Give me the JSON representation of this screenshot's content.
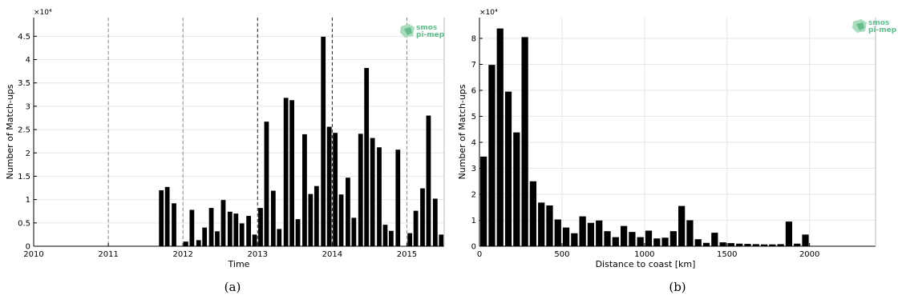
{
  "colors": {
    "bar": "#000000",
    "grid": "#e6e6e6",
    "axis": "#000000",
    "logo_text": "#5fbf8c",
    "logo_shape_light": "#a8dcbc",
    "logo_shape_dark": "#4caf7a"
  },
  "logo": {
    "line1": "smos",
    "line2": "pi-mep"
  },
  "chart_data": [
    {
      "type": "bar",
      "caption": "(a)",
      "xlabel": "Time",
      "ylabel": "Number of Match-ups",
      "y_exponent_label": "×10⁴",
      "xlim": [
        2010.0,
        2015.5
      ],
      "ylim": [
        0,
        4.9
      ],
      "x_ticks": [
        2010,
        2011,
        2012,
        2013,
        2014,
        2015
      ],
      "y_ticks": [
        0,
        0.5,
        1,
        1.5,
        2,
        2.5,
        3,
        3.5,
        4,
        4.5
      ],
      "y_tick_labels": [
        "0",
        "0.5",
        "1",
        "1.5",
        "2",
        "2.5",
        "3",
        "3.5",
        "4",
        "4.5"
      ],
      "grid": true,
      "dashed_year_lines": [
        2011,
        2012,
        2013,
        2014,
        2015
      ],
      "bar_width": 0.062,
      "x": [
        2011.71,
        2011.79,
        2011.88,
        2012.04,
        2012.12,
        2012.21,
        2012.29,
        2012.38,
        2012.46,
        2012.54,
        2012.63,
        2012.71,
        2012.79,
        2012.88,
        2012.96,
        2013.04,
        2013.12,
        2013.21,
        2013.29,
        2013.38,
        2013.46,
        2013.54,
        2013.63,
        2013.71,
        2013.79,
        2013.88,
        2013.96,
        2014.04,
        2014.12,
        2014.21,
        2014.29,
        2014.38,
        2014.46,
        2014.54,
        2014.63,
        2014.71,
        2014.79,
        2014.88,
        2015.04,
        2015.12,
        2015.21,
        2015.29,
        2015.38,
        2015.46
      ],
      "values": [
        1.2,
        1.27,
        0.92,
        0.1,
        0.78,
        0.13,
        0.4,
        0.82,
        0.32,
        0.99,
        0.74,
        0.7,
        0.49,
        0.65,
        0.25,
        0.82,
        2.67,
        1.19,
        0.37,
        3.18,
        3.13,
        0.58,
        2.4,
        1.12,
        1.29,
        4.49,
        2.56,
        2.43,
        1.11,
        1.47,
        0.61,
        2.41,
        3.82,
        2.32,
        2.12,
        0.46,
        0.33,
        2.07,
        0.28,
        0.76,
        1.24,
        2.8,
        1.02,
        0.25
      ]
    },
    {
      "type": "bar",
      "caption": "(b)",
      "xlabel": "Distance to coast [km]",
      "ylabel": "Number of Match-ups",
      "y_exponent_label": "×10⁴",
      "xlim": [
        0,
        2400
      ],
      "ylim": [
        0,
        8.8
      ],
      "x_ticks": [
        0,
        500,
        1000,
        1500,
        2000
      ],
      "y_ticks": [
        0,
        1,
        2,
        3,
        4,
        5,
        6,
        7,
        8
      ],
      "grid": true,
      "bar_width": 40,
      "x": [
        25,
        75,
        125,
        175,
        225,
        275,
        325,
        375,
        425,
        475,
        525,
        575,
        625,
        675,
        725,
        775,
        825,
        875,
        925,
        975,
        1025,
        1075,
        1125,
        1175,
        1225,
        1275,
        1325,
        1375,
        1425,
        1475,
        1525,
        1575,
        1625,
        1675,
        1725,
        1775,
        1825,
        1875,
        1925,
        1975
      ],
      "values": [
        3.45,
        6.98,
        8.38,
        5.95,
        4.38,
        8.05,
        2.5,
        1.68,
        1.57,
        1.03,
        0.72,
        0.5,
        1.15,
        0.9,
        0.99,
        0.58,
        0.35,
        0.78,
        0.55,
        0.35,
        0.6,
        0.3,
        0.33,
        0.58,
        1.55,
        1.0,
        0.27,
        0.13,
        0.52,
        0.15,
        0.12,
        0.1,
        0.09,
        0.08,
        0.07,
        0.07,
        0.08,
        0.95,
        0.1,
        0.45
      ]
    }
  ]
}
